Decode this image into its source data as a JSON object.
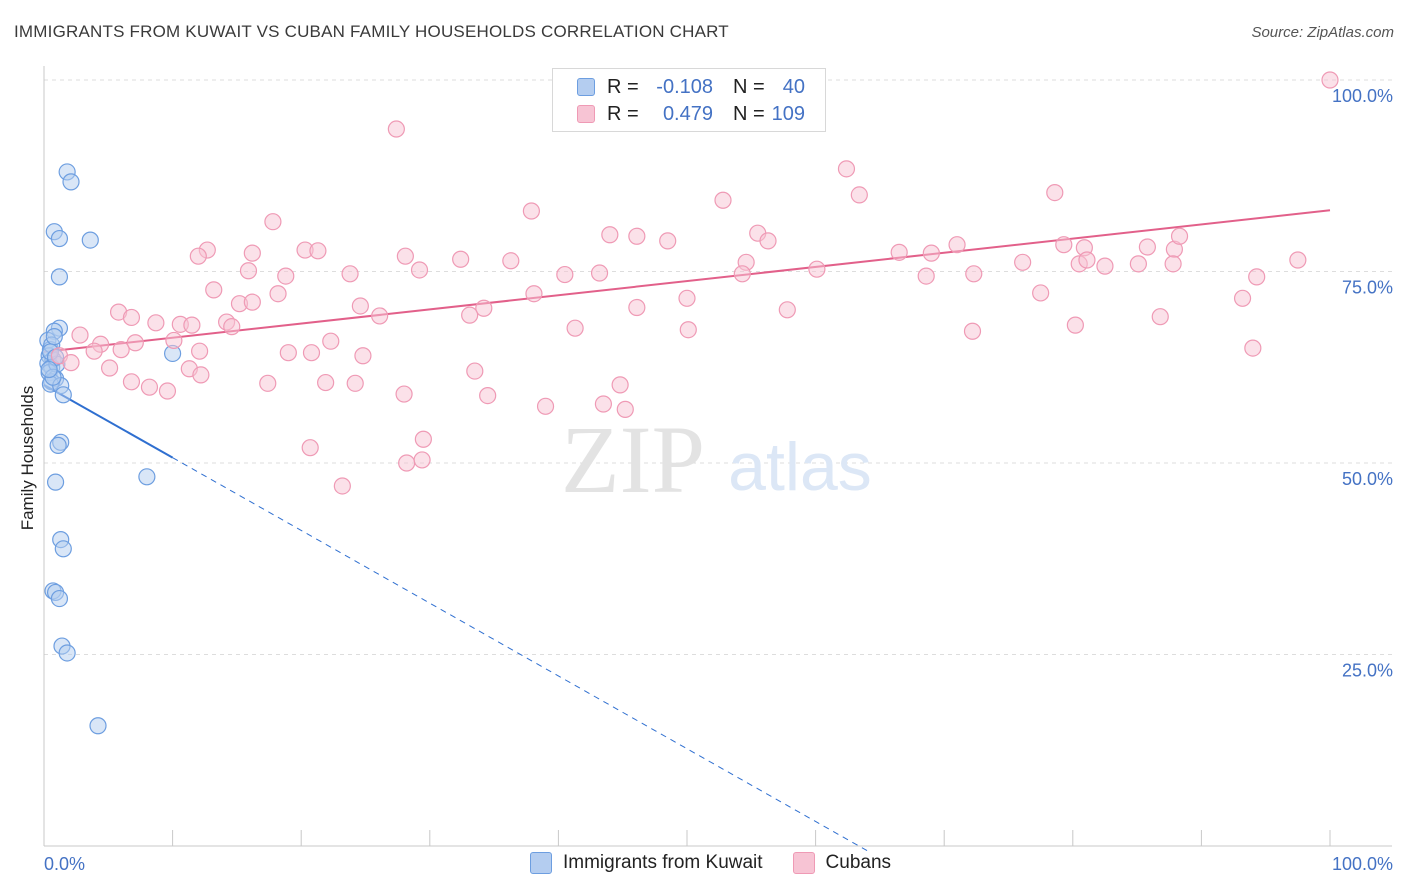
{
  "title": "IMMIGRANTS FROM KUWAIT VS CUBAN FAMILY HOUSEHOLDS CORRELATION CHART",
  "source": "Source: ZipAtlas.com",
  "watermark": {
    "zip": "ZIP",
    "atlas": "atlas"
  },
  "colors": {
    "blue_fill": "#b4cdf0",
    "blue_stroke": "#6d9ee0",
    "blue_line": "#2f6fd0",
    "pink_fill": "#f7c4d4",
    "pink_stroke": "#ef9ab5",
    "pink_line": "#e2608a",
    "tick_text": "#4472c4",
    "grid": "#dddddd"
  },
  "legend": {
    "rows": [
      {
        "r_label": "R =",
        "r_value": "-0.108",
        "n_label": "N =",
        "n_value": "40"
      },
      {
        "r_label": "R =",
        "r_value": "0.479",
        "n_label": "N =",
        "n_value": "109"
      }
    ]
  },
  "chart_data": {
    "type": "scatter",
    "title": "IMMIGRANTS FROM KUWAIT VS CUBAN FAMILY HOUSEHOLDS CORRELATION CHART",
    "xlabel": "",
    "ylabel": "Family Households",
    "xlim": [
      0,
      100
    ],
    "ylim": [
      0,
      100
    ],
    "x_tick_labels": [
      "0.0%",
      "100.0%"
    ],
    "y_ticks": [
      {
        "value": 25,
        "label": "25.0%"
      },
      {
        "value": 50,
        "label": "50.0%"
      },
      {
        "value": 75,
        "label": "75.0%"
      },
      {
        "value": 100,
        "label": "100.0%"
      }
    ],
    "grid": true,
    "series": [
      {
        "name": "Immigrants from Kuwait",
        "color": "blue",
        "r": -0.108,
        "n": 40,
        "trend": {
          "x0": 0,
          "y0": 60.2,
          "x1": 10,
          "y1": 50.7,
          "dashed_to_x": 64
        },
        "points": [
          [
            1.8,
            88.0
          ],
          [
            2.1,
            86.7
          ],
          [
            0.8,
            80.2
          ],
          [
            1.2,
            79.3
          ],
          [
            3.6,
            79.1
          ],
          [
            1.2,
            74.3
          ],
          [
            1.2,
            67.6
          ],
          [
            0.8,
            67.2
          ],
          [
            0.3,
            66.0
          ],
          [
            0.5,
            64.8
          ],
          [
            0.4,
            64.0
          ],
          [
            0.7,
            63.5
          ],
          [
            0.3,
            63.0
          ],
          [
            0.6,
            62.5
          ],
          [
            0.4,
            61.8
          ],
          [
            0.9,
            61.0
          ],
          [
            0.6,
            60.6
          ],
          [
            0.5,
            60.3
          ],
          [
            1.3,
            60.1
          ],
          [
            1.5,
            58.9
          ],
          [
            10.0,
            64.3
          ],
          [
            1.3,
            52.7
          ],
          [
            1.1,
            52.3
          ],
          [
            8.0,
            48.2
          ],
          [
            0.9,
            47.5
          ],
          [
            1.3,
            40.0
          ],
          [
            1.5,
            38.8
          ],
          [
            0.7,
            33.3
          ],
          [
            0.9,
            33.1
          ],
          [
            1.2,
            32.3
          ],
          [
            1.4,
            26.1
          ],
          [
            1.8,
            25.2
          ],
          [
            4.2,
            15.7
          ],
          [
            0.6,
            65.4
          ],
          [
            1.0,
            62.9
          ],
          [
            0.8,
            66.5
          ],
          [
            0.5,
            64.5
          ],
          [
            0.7,
            61.2
          ],
          [
            0.9,
            63.8
          ],
          [
            0.4,
            62.2
          ]
        ]
      },
      {
        "name": "Cubans",
        "color": "pink",
        "r": 0.479,
        "n": 109,
        "trend": {
          "x0": 0,
          "y0": 64.5,
          "x1": 100,
          "y1": 83.0
        },
        "points": [
          [
            100,
            100
          ],
          [
            27.4,
            93.6
          ],
          [
            52.8,
            84.3
          ],
          [
            62.4,
            88.4
          ],
          [
            63.4,
            85.0
          ],
          [
            78.6,
            85.3
          ],
          [
            37.9,
            82.9
          ],
          [
            17.8,
            81.5
          ],
          [
            44.0,
            79.8
          ],
          [
            46.1,
            79.6
          ],
          [
            48.5,
            79.0
          ],
          [
            55.5,
            80.0
          ],
          [
            56.3,
            79.0
          ],
          [
            71.0,
            78.5
          ],
          [
            79.3,
            78.5
          ],
          [
            80.9,
            78.1
          ],
          [
            85.8,
            78.2
          ],
          [
            87.9,
            77.9
          ],
          [
            88.3,
            79.6
          ],
          [
            66.5,
            77.5
          ],
          [
            69.0,
            77.4
          ],
          [
            12.7,
            77.8
          ],
          [
            16.2,
            77.4
          ],
          [
            20.3,
            77.8
          ],
          [
            21.3,
            77.7
          ],
          [
            12.0,
            77.0
          ],
          [
            28.1,
            77.0
          ],
          [
            32.4,
            76.6
          ],
          [
            36.3,
            76.4
          ],
          [
            54.6,
            76.2
          ],
          [
            76.1,
            76.2
          ],
          [
            80.5,
            76.0
          ],
          [
            81.1,
            76.5
          ],
          [
            85.1,
            76.0
          ],
          [
            87.8,
            76.0
          ],
          [
            82.5,
            75.7
          ],
          [
            15.9,
            75.1
          ],
          [
            18.8,
            74.4
          ],
          [
            23.8,
            74.7
          ],
          [
            29.2,
            75.2
          ],
          [
            40.5,
            74.6
          ],
          [
            43.2,
            74.8
          ],
          [
            54.3,
            74.7
          ],
          [
            60.1,
            75.3
          ],
          [
            68.6,
            74.4
          ],
          [
            72.3,
            74.7
          ],
          [
            94.3,
            74.3
          ],
          [
            97.5,
            76.5
          ],
          [
            13.2,
            72.6
          ],
          [
            18.2,
            72.1
          ],
          [
            38.1,
            72.1
          ],
          [
            50.0,
            71.5
          ],
          [
            77.5,
            72.2
          ],
          [
            15.2,
            70.8
          ],
          [
            16.2,
            71.0
          ],
          [
            24.6,
            70.5
          ],
          [
            34.2,
            70.2
          ],
          [
            46.1,
            70.3
          ],
          [
            57.8,
            70.0
          ],
          [
            93.2,
            71.5
          ],
          [
            5.8,
            69.7
          ],
          [
            6.8,
            69.0
          ],
          [
            10.6,
            68.1
          ],
          [
            8.7,
            68.3
          ],
          [
            11.5,
            68.0
          ],
          [
            14.2,
            68.4
          ],
          [
            14.6,
            67.8
          ],
          [
            26.1,
            69.2
          ],
          [
            33.1,
            69.3
          ],
          [
            41.3,
            67.6
          ],
          [
            50.1,
            67.4
          ],
          [
            72.2,
            67.2
          ],
          [
            80.2,
            68.0
          ],
          [
            86.8,
            69.1
          ],
          [
            2.8,
            66.7
          ],
          [
            4.4,
            65.5
          ],
          [
            6.0,
            64.8
          ],
          [
            7.1,
            65.7
          ],
          [
            10.1,
            66.0
          ],
          [
            12.1,
            64.6
          ],
          [
            19.0,
            64.4
          ],
          [
            20.8,
            64.4
          ],
          [
            22.3,
            65.9
          ],
          [
            24.8,
            64.0
          ],
          [
            1.2,
            64.0
          ],
          [
            3.9,
            64.6
          ],
          [
            5.1,
            62.4
          ],
          [
            2.1,
            63.1
          ],
          [
            11.3,
            62.3
          ],
          [
            12.2,
            61.5
          ],
          [
            6.8,
            60.6
          ],
          [
            8.2,
            59.9
          ],
          [
            9.6,
            59.4
          ],
          [
            17.4,
            60.4
          ],
          [
            21.9,
            60.5
          ],
          [
            24.2,
            60.4
          ],
          [
            28.0,
            59.0
          ],
          [
            34.5,
            58.8
          ],
          [
            39.0,
            57.4
          ],
          [
            43.5,
            57.7
          ],
          [
            45.2,
            57.0
          ],
          [
            44.8,
            60.2
          ],
          [
            33.5,
            62.0
          ],
          [
            29.5,
            53.1
          ],
          [
            20.7,
            52.0
          ],
          [
            28.2,
            50.0
          ],
          [
            29.4,
            50.4
          ],
          [
            23.2,
            47.0
          ],
          [
            94.0,
            65.0
          ]
        ]
      }
    ]
  },
  "bottom_legend": [
    "Immigrants from Kuwait",
    "Cubans"
  ]
}
